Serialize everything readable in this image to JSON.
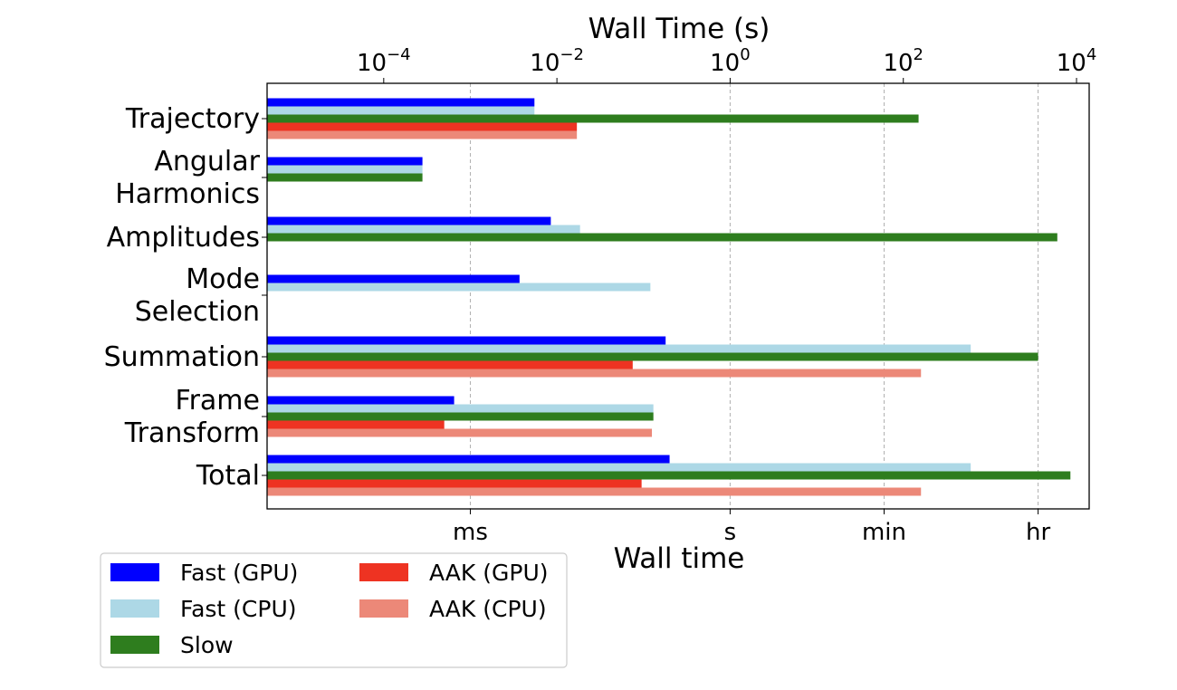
{
  "chart_data": {
    "type": "bar",
    "orientation": "horizontal",
    "scale": "log",
    "top_axis_label": "Wall Time (s)",
    "bottom_axis_label": "Wall time",
    "xlim": [
      4.5e-06,
      14000
    ],
    "top_ticks": [
      {
        "value": 0.0001,
        "base": "10",
        "exp": "−4"
      },
      {
        "value": 0.01,
        "base": "10",
        "exp": "−2"
      },
      {
        "value": 1,
        "base": "10",
        "exp": "0"
      },
      {
        "value": 100,
        "base": "10",
        "exp": "2"
      },
      {
        "value": 10000,
        "base": "10",
        "exp": "4"
      }
    ],
    "bottom_ticks": [
      {
        "value": 0.001,
        "label": "ms"
      },
      {
        "value": 1,
        "label": "s"
      },
      {
        "value": 60,
        "label": "min"
      },
      {
        "value": 3600,
        "label": "hr"
      }
    ],
    "grid": "vertical dashed at bottom ticks",
    "categories": [
      {
        "lines": [
          "Trajectory"
        ]
      },
      {
        "lines": [
          "Angular",
          "Harmonics"
        ]
      },
      {
        "lines": [
          "Amplitudes"
        ]
      },
      {
        "lines": [
          "Mode",
          "Selection"
        ]
      },
      {
        "lines": [
          "Summation"
        ]
      },
      {
        "lines": [
          "Frame",
          "Transform"
        ]
      },
      {
        "lines": [
          "Total"
        ]
      }
    ],
    "series": [
      {
        "name": "Fast (GPU)",
        "color": "#0000ff",
        "values": [
          0.0055,
          0.00028,
          0.0085,
          0.0037,
          0.18,
          0.00065,
          0.2
        ]
      },
      {
        "name": "Fast (CPU)",
        "color": "#add8e6",
        "values": [
          0.0055,
          0.00028,
          0.0185,
          0.12,
          600,
          0.13,
          600
        ]
      },
      {
        "name": "Slow",
        "color": "#2e7d1e",
        "values": [
          150,
          0.00028,
          6000,
          null,
          3600,
          0.13,
          8500
        ]
      },
      {
        "name": "AAK (GPU)",
        "color": "#ee3322",
        "values": [
          0.017,
          null,
          null,
          null,
          0.075,
          0.0005,
          0.095
        ]
      },
      {
        "name": "AAK (CPU)",
        "color": "#ec8878",
        "values": [
          0.017,
          null,
          null,
          null,
          160,
          0.125,
          160
        ]
      }
    ],
    "legend": {
      "position": "bottom-left",
      "columns": [
        [
          "Fast (GPU)",
          "Fast (CPU)",
          "Slow"
        ],
        [
          "AAK (GPU)",
          "AAK (CPU)"
        ]
      ]
    }
  }
}
